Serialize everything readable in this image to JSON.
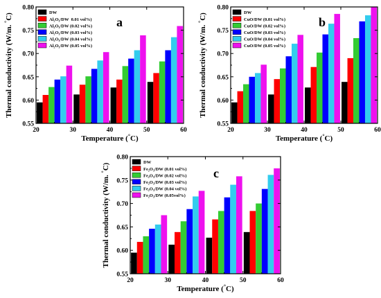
{
  "chart_data": [
    {
      "type": "bar",
      "panel_label": "a",
      "xlabel": "Temperature (°C)",
      "ylabel": "Thermal conductivity (W/m. °C)",
      "xlim": [
        20,
        60
      ],
      "ylim": [
        0.55,
        0.8
      ],
      "x_ticks": [
        "20",
        "30",
        "40",
        "50",
        "60"
      ],
      "y_ticks": [
        "0.55",
        "0.60",
        "0.65",
        "0.70",
        "0.75",
        "0.80"
      ],
      "categories": [
        25,
        35,
        45,
        55
      ],
      "legend_position": "top-left",
      "series": [
        {
          "name": "DW",
          "color": "#000000",
          "values": [
            0.595,
            0.612,
            0.627,
            0.639
          ]
        },
        {
          "name": "Al₂O₃/DW  0.01 vol%)",
          "color": "#ff0000",
          "values": [
            0.611,
            0.633,
            0.644,
            0.658
          ]
        },
        {
          "name": "Al₂O₃/DW (0.02 vol%)",
          "color": "#33cc33",
          "values": [
            0.628,
            0.651,
            0.673,
            0.683
          ]
        },
        {
          "name": "Al₂O₃/DW (0.03 vol%)",
          "color": "#0000ff",
          "values": [
            0.644,
            0.667,
            0.689,
            0.707
          ]
        },
        {
          "name": "Al₂O₃/DW (0.04 vol%)",
          "color": "#33ccee",
          "values": [
            0.651,
            0.685,
            0.707,
            0.735
          ]
        },
        {
          "name": "Al₂O₃/DW (0.05 vol%)",
          "color": "#ee11ee",
          "values": [
            0.674,
            0.703,
            0.739,
            0.759
          ]
        }
      ]
    },
    {
      "type": "bar",
      "panel_label": "b",
      "xlabel": "Temperature (°C)",
      "ylabel": "Thermal conductivity (W/m. °C)",
      "xlim": [
        20,
        60
      ],
      "ylim": [
        0.55,
        0.8
      ],
      "x_ticks": [
        "20",
        "30",
        "40",
        "50",
        "60"
      ],
      "y_ticks": [
        "0.55",
        "0.60",
        "0.65",
        "0.70",
        "0.75",
        "0.80"
      ],
      "categories": [
        25,
        35,
        45,
        55
      ],
      "legend_position": "top-left",
      "series": [
        {
          "name": "DW",
          "color": "#000000",
          "values": [
            0.595,
            0.612,
            0.627,
            0.639
          ]
        },
        {
          "name": "CuO/DW (0.01 vol%)",
          "color": "#ff0000",
          "values": [
            0.619,
            0.645,
            0.671,
            0.69
          ]
        },
        {
          "name": "CuO/DW (0.02 vol%)",
          "color": "#33cc33",
          "values": [
            0.634,
            0.668,
            0.702,
            0.733
          ]
        },
        {
          "name": "CuO/DW (0.03 vol%)",
          "color": "#0000ff",
          "values": [
            0.65,
            0.694,
            0.741,
            0.769
          ]
        },
        {
          "name": "CuO/DW (0.04 vol%)",
          "color": "#33ccee",
          "values": [
            0.658,
            0.721,
            0.764,
            0.782
          ]
        },
        {
          "name": "CuO/DW (0.05 vol%)",
          "color": "#ee11ee",
          "values": [
            0.676,
            0.74,
            0.785,
            0.8
          ]
        }
      ]
    },
    {
      "type": "bar",
      "panel_label": "c",
      "xlabel": "Temperature (°C)",
      "ylabel": "Thermal conductivity (W/m. °C)",
      "xlim": [
        20,
        60
      ],
      "ylim": [
        0.55,
        0.8
      ],
      "x_ticks": [
        "20",
        "30",
        "40",
        "50",
        "60"
      ],
      "y_ticks": [
        "0.55",
        "0.60",
        "0.65",
        "0.70",
        "0.75",
        "0.80"
      ],
      "categories": [
        25,
        35,
        45,
        55
      ],
      "legend_position": "top-left",
      "series": [
        {
          "name": "DW",
          "color": "#000000",
          "values": [
            0.595,
            0.612,
            0.627,
            0.639
          ]
        },
        {
          "name": "Fe₂O₃/DW (0.01 vol%)",
          "color": "#ff0000",
          "values": [
            0.618,
            0.639,
            0.666,
            0.684
          ]
        },
        {
          "name": "Fe₂O₃/DW (0.02 vol%)",
          "color": "#33cc33",
          "values": [
            0.63,
            0.662,
            0.684,
            0.7
          ]
        },
        {
          "name": "Fe₂O₃/DW (0.03 vol%)",
          "color": "#0000ff",
          "values": [
            0.646,
            0.688,
            0.713,
            0.731
          ]
        },
        {
          "name": "Fe₂O₃/DW (0.04 vol%)",
          "color": "#33ccee",
          "values": [
            0.655,
            0.715,
            0.74,
            0.761
          ]
        },
        {
          "name": "Fe₂O₃/DW (0.05vol%)",
          "color": "#ee11ee",
          "values": [
            0.675,
            0.727,
            0.758,
            0.775
          ]
        }
      ]
    }
  ]
}
